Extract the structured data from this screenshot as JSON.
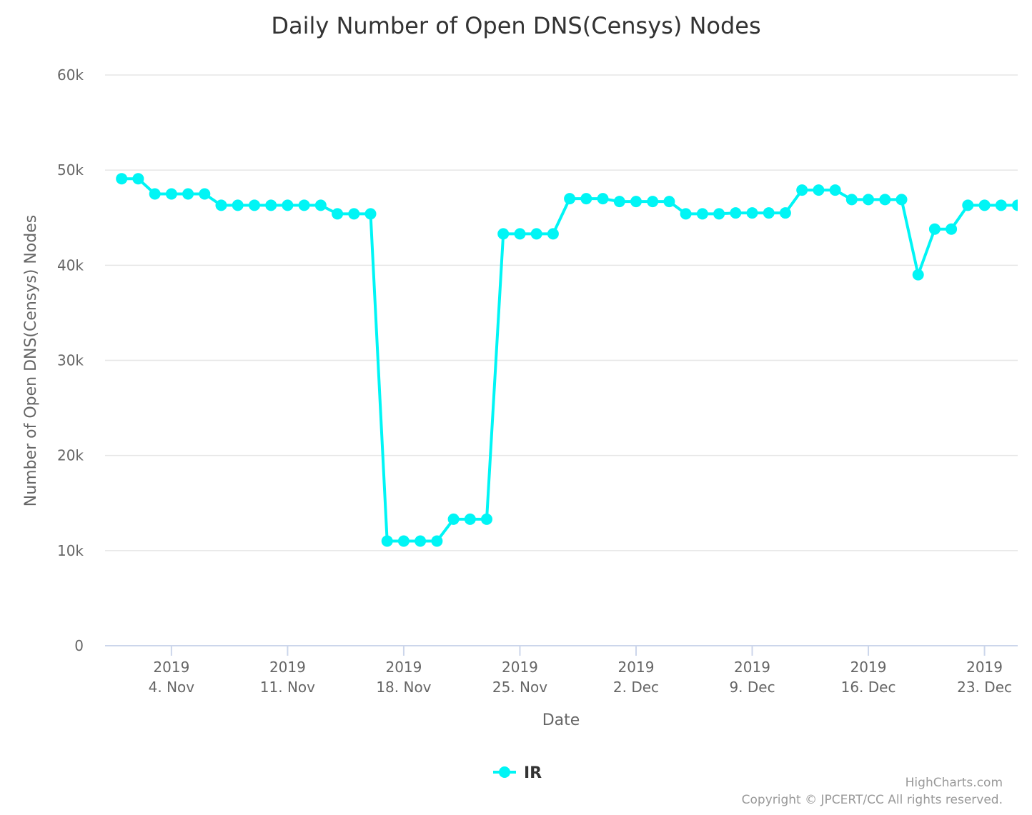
{
  "chart_data": {
    "type": "line",
    "title": "Daily Number of Open DNS(Censys) Nodes",
    "xlabel": "Date",
    "ylabel": "Number of Open DNS(Censys) Nodes",
    "ylim": [
      0,
      60000
    ],
    "y_ticks": [
      {
        "value": 0,
        "label": "0"
      },
      {
        "value": 10000,
        "label": "10k"
      },
      {
        "value": 20000,
        "label": "20k"
      },
      {
        "value": 30000,
        "label": "30k"
      },
      {
        "value": 40000,
        "label": "40k"
      },
      {
        "value": 50000,
        "label": "50k"
      },
      {
        "value": 60000,
        "label": "60k"
      }
    ],
    "xlim": [
      "2019-10-31",
      "2019-12-25"
    ],
    "x_ticks": [
      {
        "date": "2019-11-04",
        "year": "2019",
        "label": "4. Nov"
      },
      {
        "date": "2019-11-11",
        "year": "2019",
        "label": "11. Nov"
      },
      {
        "date": "2019-11-18",
        "year": "2019",
        "label": "18. Nov"
      },
      {
        "date": "2019-11-25",
        "year": "2019",
        "label": "25. Nov"
      },
      {
        "date": "2019-12-02",
        "year": "2019",
        "label": "2. Dec"
      },
      {
        "date": "2019-12-09",
        "year": "2019",
        "label": "9. Dec"
      },
      {
        "date": "2019-12-16",
        "year": "2019",
        "label": "16. Dec"
      },
      {
        "date": "2019-12-23",
        "year": "2019",
        "label": "23. Dec"
      }
    ],
    "grid": true,
    "legend_position": "bottom-center",
    "series": [
      {
        "name": "IR",
        "color": "#00f5f5",
        "x": [
          "2019-11-01",
          "2019-11-02",
          "2019-11-03",
          "2019-11-04",
          "2019-11-05",
          "2019-11-06",
          "2019-11-07",
          "2019-11-08",
          "2019-11-09",
          "2019-11-10",
          "2019-11-11",
          "2019-11-12",
          "2019-11-13",
          "2019-11-14",
          "2019-11-15",
          "2019-11-16",
          "2019-11-17",
          "2019-11-18",
          "2019-11-19",
          "2019-11-20",
          "2019-11-21",
          "2019-11-22",
          "2019-11-23",
          "2019-11-24",
          "2019-11-25",
          "2019-11-26",
          "2019-11-27",
          "2019-11-28",
          "2019-11-29",
          "2019-11-30",
          "2019-12-01",
          "2019-12-02",
          "2019-12-03",
          "2019-12-04",
          "2019-12-05",
          "2019-12-06",
          "2019-12-07",
          "2019-12-08",
          "2019-12-09",
          "2019-12-10",
          "2019-12-11",
          "2019-12-12",
          "2019-12-13",
          "2019-12-14",
          "2019-12-15",
          "2019-12-16",
          "2019-12-17",
          "2019-12-18",
          "2019-12-19",
          "2019-12-20",
          "2019-12-21",
          "2019-12-22",
          "2019-12-23",
          "2019-12-24",
          "2019-12-25"
        ],
        "values": [
          49100,
          49100,
          47500,
          47500,
          47500,
          47500,
          46300,
          46300,
          46300,
          46300,
          46300,
          46300,
          46300,
          45400,
          45400,
          45400,
          11000,
          11000,
          11000,
          11000,
          13300,
          13300,
          13300,
          43300,
          43300,
          43300,
          43300,
          47000,
          47000,
          47000,
          46700,
          46700,
          46700,
          46700,
          45400,
          45400,
          45400,
          45500,
          45500,
          45500,
          45500,
          47900,
          47900,
          47900,
          46900,
          46900,
          46900,
          46900,
          39000,
          43800,
          43800,
          46300,
          46300,
          46300,
          46300
        ]
      }
    ]
  },
  "credits": {
    "line1": "HighCharts.com",
    "line2": "Copyright © JPCERT/CC All rights reserved."
  }
}
